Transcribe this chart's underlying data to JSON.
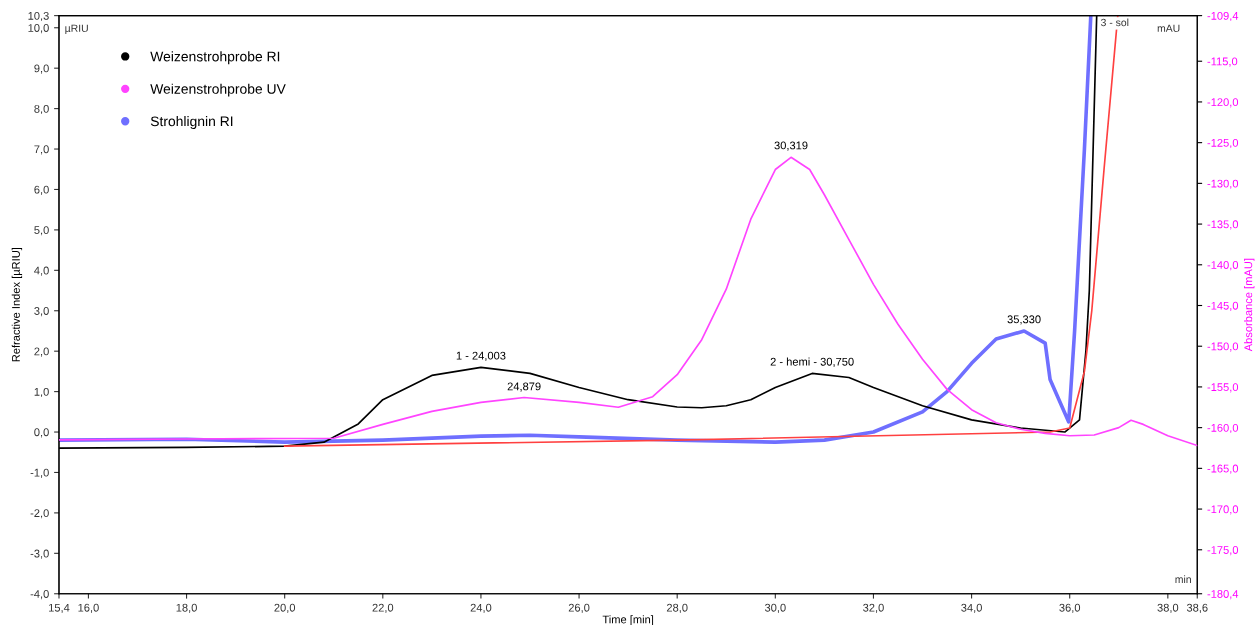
{
  "chart_data": {
    "type": "line",
    "xlabel": "Time [min]",
    "ylabel": "Refractive Index [µRIU]",
    "y2label": "Absorbance [mAU]",
    "legend": "top left",
    "grid": false,
    "marker": "none",
    "line_style": "solid",
    "xlim": [
      15.4,
      38.6
    ],
    "xticks": [
      {
        "value": 15.4,
        "label": "15,4"
      },
      {
        "value": 16,
        "label": "16,0"
      },
      {
        "value": 18,
        "label": "18,0"
      },
      {
        "value": 20,
        "label": "20,0"
      },
      {
        "value": 22,
        "label": "22,0"
      },
      {
        "value": 24,
        "label": "24,0"
      },
      {
        "value": 26,
        "label": "26,0"
      },
      {
        "value": 28,
        "label": "28,0"
      },
      {
        "value": 30,
        "label": "30,0"
      },
      {
        "value": 32,
        "label": "32,0"
      },
      {
        "value": 34,
        "label": "34,0"
      },
      {
        "value": 36,
        "label": "36,0"
      },
      {
        "value": 38,
        "label": "38,0"
      },
      {
        "value": 38.6,
        "label": "38,6"
      }
    ],
    "ylim": [
      -4.0,
      10.3
    ],
    "yticks": [
      {
        "value": -4,
        "label": "-4,0"
      },
      {
        "value": -3,
        "label": "-3,0"
      },
      {
        "value": -2,
        "label": "-2,0"
      },
      {
        "value": -1,
        "label": "-1,0"
      },
      {
        "value": 0,
        "label": "0,0"
      },
      {
        "value": 1,
        "label": "1,0"
      },
      {
        "value": 2,
        "label": "2,0"
      },
      {
        "value": 3,
        "label": "3,0"
      },
      {
        "value": 4,
        "label": "4,0"
      },
      {
        "value": 5,
        "label": "5,0"
      },
      {
        "value": 6,
        "label": "6,0"
      },
      {
        "value": 7,
        "label": "7,0"
      },
      {
        "value": 8,
        "label": "8,0"
      },
      {
        "value": 9,
        "label": "9,0"
      },
      {
        "value": 10,
        "label": "10,0"
      },
      {
        "value": 10.3,
        "label": "10,3"
      }
    ],
    "y2lim": [
      -180.4,
      -109.4
    ],
    "y2ticks": [
      {
        "value": -180.4,
        "label": "-180,4"
      },
      {
        "value": -175,
        "label": "-175,0"
      },
      {
        "value": -170,
        "label": "-170,0"
      },
      {
        "value": -165,
        "label": "-165,0"
      },
      {
        "value": -160,
        "label": "-160,0"
      },
      {
        "value": -155,
        "label": "-155,0"
      },
      {
        "value": -150,
        "label": "-150,0"
      },
      {
        "value": -145,
        "label": "-145,0"
      },
      {
        "value": -140,
        "label": "-140,0"
      },
      {
        "value": -135,
        "label": "-135,0"
      },
      {
        "value": -130,
        "label": "-130,0"
      },
      {
        "value": -125,
        "label": "-125,0"
      },
      {
        "value": -120,
        "label": "-120,0"
      },
      {
        "value": -115,
        "label": "-115,0"
      },
      {
        "value": -109.4,
        "label": "-109,4"
      }
    ],
    "series": [
      {
        "name": "Weizenstrohprobe RI",
        "color": "#000000",
        "x": [
          15.4,
          18,
          20,
          20.8,
          21.5,
          22,
          23,
          24,
          25,
          26,
          27,
          28,
          28.5,
          29,
          29.5,
          30,
          30.75,
          31.5,
          32,
          33,
          34,
          35,
          35.9,
          36.2,
          36.33,
          36.4,
          36.55
        ],
        "values": [
          -0.4,
          -0.38,
          -0.35,
          -0.25,
          0.2,
          0.8,
          1.4,
          1.6,
          1.45,
          1.1,
          0.8,
          0.62,
          0.6,
          0.65,
          0.8,
          1.1,
          1.45,
          1.35,
          1.1,
          0.65,
          0.3,
          0.1,
          0.0,
          0.3,
          2.0,
          3.5,
          10.3
        ]
      },
      {
        "name": "Weizenstrohprobe UV",
        "color": "#ff44ff",
        "axis": "y2",
        "x": [
          15.4,
          18,
          21,
          22,
          23,
          24,
          24.88,
          26,
          26.8,
          27.5,
          28,
          28.5,
          29,
          29.5,
          30,
          30.32,
          30.7,
          31,
          31.5,
          32,
          32.5,
          33,
          33.5,
          34,
          34.5,
          35,
          35.5,
          36,
          36.5,
          37,
          37.25,
          37.5,
          38,
          38.6
        ],
        "values": [
          -161.5,
          -161.4,
          -161.3,
          -159.6,
          -158.0,
          -156.9,
          -156.3,
          -156.9,
          -157.5,
          -156.2,
          -153.5,
          -149.2,
          -143.0,
          -134.4,
          -128.3,
          -126.8,
          -128.3,
          -131.4,
          -136.9,
          -142.4,
          -147.3,
          -151.6,
          -155.3,
          -157.8,
          -159.4,
          -160.2,
          -160.7,
          -161.0,
          -160.9,
          -160.0,
          -159.1,
          -159.6,
          -161.0,
          -162.2
        ]
      },
      {
        "name": "Strohlignin RI",
        "color": "#6f6fff",
        "x": [
          15.4,
          18,
          20,
          22,
          24,
          25,
          26,
          28,
          30,
          31,
          32,
          33,
          33.5,
          34,
          34.5,
          35.07,
          35.5,
          35.6,
          35.98,
          36.1,
          36.3,
          36.43
        ],
        "values": [
          -0.2,
          -0.18,
          -0.25,
          -0.2,
          -0.1,
          -0.08,
          -0.12,
          -0.2,
          -0.25,
          -0.2,
          0.0,
          0.5,
          1.0,
          1.7,
          2.3,
          2.5,
          2.2,
          1.3,
          0.25,
          2.5,
          7.0,
          10.3
        ]
      },
      {
        "color": "#ff4040",
        "x": [
          20.0,
          28,
          35.6,
          36.0,
          36.3,
          36.45,
          36.7,
          36.98
        ],
        "values": [
          -0.35,
          -0.2,
          0.0,
          0.1,
          1.5,
          3.0,
          6.5,
          10.3
        ]
      }
    ],
    "annotations": [
      {
        "text": "1 - 24,003",
        "x": 24.0,
        "y": 1.6
      },
      {
        "text": "24,879",
        "x": 24.88,
        "y": 0.84
      },
      {
        "text": "30,319",
        "x": 30.32,
        "y": 6.8
      },
      {
        "text": "2 - hemi - 30,750",
        "x": 30.75,
        "y": 1.45
      },
      {
        "text": "35,330",
        "x": 35.07,
        "y": 2.5
      },
      "µRIU",
      "mAU",
      "min",
      "3 - sol"
    ]
  }
}
